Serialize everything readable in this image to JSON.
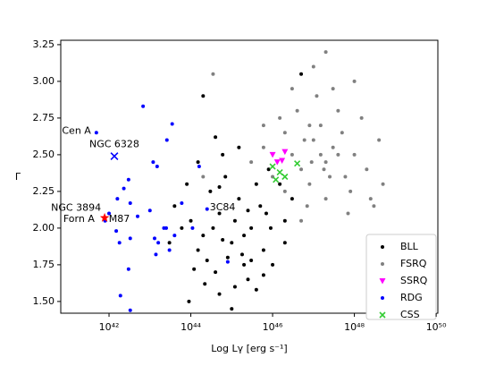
{
  "chart_data": {
    "type": "scatter",
    "xlabel": "Log Lγ [erg s⁻¹]",
    "ylabel": "Γ",
    "xscale": "log",
    "xlim": [
      6.6e+40,
      1.1e+50
    ],
    "xticks": [
      {
        "value": 1e+42,
        "label": "10⁴²"
      },
      {
        "value": 1e+44,
        "label": "10⁴⁴"
      },
      {
        "value": 1e+46,
        "label": "10⁴⁶"
      },
      {
        "value": 1e+48,
        "label": "10⁴⁸"
      },
      {
        "value": 1e+50,
        "label": "10⁵⁰"
      }
    ],
    "ylim": [
      1.42,
      3.28
    ],
    "yticks": [
      {
        "value": 1.5,
        "label": "1.50"
      },
      1.75,
      {
        "value": 2.0,
        "label": "2.00"
      },
      2.25,
      {
        "value": 2.5,
        "label": "2.50"
      },
      2.75,
      {
        "value": 3.0,
        "label": "3.00"
      },
      3.25
    ],
    "legend": "lower right",
    "series": [
      {
        "name": "FSRQ",
        "color": "#808080",
        "marker": "dot",
        "x": [
          3e+46,
          5e+46,
          1e+47,
          2e+47,
          8e+46,
          1.5e+47,
          4e+46,
          3e+47,
          6e+47,
          1e+48,
          2e+47,
          5e+47,
          1.2e+47,
          2e+46,
          1e+46,
          6e+45,
          3e+45,
          8e+47,
          2e+48,
          3e+48,
          4e+48,
          1.5e+48,
          7e+46,
          3e+47,
          1e+47,
          5e+46,
          2.5e+47,
          1.5e+47,
          6e+46,
          4e+47,
          9e+46,
          2e+46,
          1.5e+46,
          7e+47,
          1e+48,
          5e+48,
          3e+46,
          2e+47,
          6e+45,
          3.5e+44,
          2e+44,
          1.8e+47,
          4e+47,
          8e+46,
          2.5e+48
        ],
        "values": [
          2.5,
          2.4,
          2.6,
          2.45,
          2.3,
          2.7,
          2.8,
          2.55,
          2.35,
          2.5,
          2.2,
          2.65,
          2.9,
          2.65,
          2.35,
          2.55,
          2.45,
          2.25,
          2.4,
          2.15,
          2.6,
          2.75,
          2.15,
          2.95,
          3.1,
          2.05,
          2.35,
          2.5,
          2.6,
          2.8,
          2.45,
          2.25,
          2.75,
          2.1,
          3.0,
          2.3,
          2.95,
          3.2,
          2.7,
          3.05,
          2.35,
          2.4,
          2.5,
          2.7,
          2.2
        ]
      },
      {
        "name": "BLL",
        "color": "#000000",
        "marker": "dot",
        "x": [
          2e+44,
          5e+44,
          1e+45,
          3e+45,
          8e+44,
          1.5e+45,
          4e+44,
          6e+45,
          2e+45,
          1e+44,
          3e+44,
          7e+44,
          1.2e+45,
          2.5e+45,
          5e+45,
          9e+45,
          1.5e+44,
          6e+43,
          3e+43,
          4e+45,
          2e+46,
          1e+46,
          8e+45,
          5e+44,
          2e+45,
          3.5e+44,
          6e+44,
          1.8e+45,
          2.2e+44,
          1.2e+44,
          4e+43,
          9e+43,
          6e+44,
          1.5e+45,
          3e+46,
          2e+46,
          4e+45,
          1e+45,
          3e+45,
          7e+45,
          5e+44,
          2.5e+44,
          8e+43,
          1.5e+44,
          4e+44,
          2e+44,
          1.2e+45,
          2.5e+45,
          6e+45,
          1.5e+46,
          5e+46
        ],
        "values": [
          1.95,
          2.1,
          1.9,
          2.0,
          1.8,
          2.2,
          1.7,
          1.85,
          1.75,
          2.05,
          2.25,
          2.35,
          1.6,
          1.65,
          2.15,
          2.0,
          1.85,
          2.0,
          1.9,
          2.3,
          2.05,
          1.75,
          2.4,
          1.55,
          1.95,
          2.0,
          1.92,
          1.82,
          1.62,
          1.72,
          2.15,
          1.5,
          2.5,
          2.55,
          2.2,
          1.9,
          1.58,
          1.45,
          1.78,
          2.1,
          2.28,
          1.78,
          2.3,
          2.45,
          2.62,
          2.9,
          2.05,
          2.12,
          1.68,
          2.3,
          3.05
        ]
      },
      {
        "name": "SSRQ",
        "color": "#ff00ff",
        "marker": "tri",
        "x": [
          1e+46,
          2e+46,
          1.3e+46,
          1.7e+46
        ],
        "values": [
          2.5,
          2.52,
          2.45,
          2.46
        ]
      },
      {
        "name": "RDG",
        "color": "#0000ff",
        "marker": "dot",
        "x": [
          1.2e+43,
          1.5e+43,
          3e+42,
          2.3e+42,
          1.6e+42,
          1e+42,
          3.3e+42,
          5e+42,
          1e+43,
          1.3e+43,
          3.3e+42,
          1.8e+42,
          2.5e+43,
          4e+43,
          1.6e+43,
          3e+42,
          1.9e+42,
          3.3e+42,
          1.4e+43,
          3e+43,
          2.2e+43,
          1.6e+44,
          1.1e+44,
          8e+44,
          6e+43,
          2.5e+44,
          6.8e+42,
          3.5e+43,
          2.6e+43,
          4.9e+41,
          1.5e+42,
          8e+41
        ],
        "values": [
          2.45,
          2.42,
          2.33,
          2.27,
          2.2,
          2.1,
          2.17,
          2.08,
          2.12,
          1.93,
          1.93,
          1.9,
          2.0,
          1.95,
          1.9,
          1.72,
          1.54,
          1.44,
          1.82,
          1.85,
          2.0,
          2.42,
          2.0,
          1.77,
          2.17,
          2.13,
          2.83,
          2.71,
          2.6,
          2.65,
          1.98,
          2.05
        ]
      },
      {
        "name": "CSS",
        "color": "#33cc33",
        "marker": "x",
        "x": [
          1e+46,
          1.5e+46,
          2e+46,
          4e+46,
          1.2e+46
        ],
        "values": [
          2.42,
          2.38,
          2.35,
          2.44,
          2.33
        ]
      }
    ],
    "annotations": [
      {
        "text": "Cen A",
        "x": 4.9e+41,
        "y": 2.65,
        "color": "#0000ff"
      },
      {
        "text": "NGC 6328",
        "x": 1.35e+42,
        "y": 2.49,
        "color": "#0000ff",
        "marker": "x"
      },
      {
        "text": "NGC 3894",
        "x": 7.8e+41,
        "y": 2.07,
        "color": "#ff0000",
        "marker": "star"
      },
      {
        "text": "Forn A",
        "x": 6e+41,
        "y": 2.06,
        "color": "#0000ff"
      },
      {
        "text": "M87",
        "x": 8.5e+41,
        "y": 2.06,
        "color": "#0000ff"
      },
      {
        "text": "3C84",
        "x": 2.5e+44,
        "y": 2.14,
        "color": "#0000ff"
      }
    ]
  }
}
